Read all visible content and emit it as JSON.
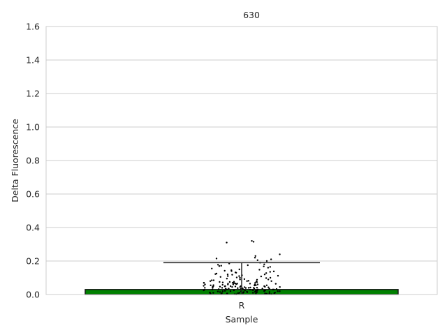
{
  "chart_data": {
    "type": "bar",
    "title": "630",
    "xlabel": "Sample",
    "ylabel": "Delta Fluorescence",
    "categories": [
      "R"
    ],
    "values": [
      0.03
    ],
    "error_bar": {
      "upper": 0.19,
      "lower": 0.0
    },
    "ylim": [
      0,
      1.6
    ],
    "yticks": [
      "0.0",
      "0.2",
      "0.4",
      "0.6",
      "0.8",
      "1.0",
      "1.2",
      "1.4",
      "1.6"
    ],
    "grid": true,
    "bar_color": "#008000",
    "point_color": "#000000",
    "points": [
      0.315,
      0.31,
      0.32,
      0.24,
      0.23,
      0.22,
      0.215,
      0.21,
      0.205,
      0.2,
      0.19,
      0.185,
      0.18,
      0.178,
      0.175,
      0.172,
      0.17,
      0.168,
      0.165,
      0.16,
      0.155,
      0.15,
      0.148,
      0.145,
      0.142,
      0.14,
      0.138,
      0.135,
      0.132,
      0.13,
      0.128,
      0.125,
      0.122,
      0.12,
      0.118,
      0.115,
      0.112,
      0.11,
      0.108,
      0.105,
      0.102,
      0.1,
      0.098,
      0.095,
      0.092,
      0.09,
      0.088,
      0.085,
      0.082,
      0.08,
      0.078,
      0.076,
      0.074,
      0.072,
      0.07,
      0.068,
      0.066,
      0.064,
      0.062,
      0.06,
      0.058,
      0.056,
      0.054,
      0.052,
      0.05,
      0.049,
      0.048,
      0.047,
      0.046,
      0.045,
      0.044,
      0.043,
      0.042,
      0.041,
      0.04,
      0.039,
      0.038,
      0.037,
      0.036,
      0.035,
      0.034,
      0.033,
      0.032,
      0.031,
      0.03,
      0.029,
      0.028,
      0.027,
      0.026,
      0.025,
      0.024,
      0.023,
      0.022,
      0.021,
      0.02,
      0.019,
      0.018,
      0.017,
      0.016,
      0.015,
      0.014,
      0.013,
      0.012,
      0.011,
      0.01,
      0.009,
      0.008,
      0.007,
      0.006,
      0.005,
      0.004,
      0.003,
      0.002,
      0.001,
      0.07,
      0.065,
      0.06,
      0.055,
      0.05,
      0.045,
      0.04,
      0.035,
      0.03,
      0.025,
      0.02,
      0.015,
      0.01,
      0.005,
      0.06,
      0.05,
      0.04,
      0.03,
      0.02,
      0.01,
      0.08,
      0.075,
      0.07,
      0.065,
      0.06,
      0.055,
      0.05,
      0.045,
      0.04,
      0.035,
      0.03,
      0.025,
      0.02,
      0.015,
      0.01,
      0.005,
      0.12,
      0.11,
      0.1,
      0.09,
      0.085,
      0.08,
      0.075,
      0.07,
      0.065,
      0.06,
      0.055,
      0.05,
      0.045,
      0.04,
      0.035,
      0.03,
      0.025,
      0.02,
      0.015,
      0.01,
      0.008,
      0.006,
      0.004,
      0.002
    ]
  }
}
